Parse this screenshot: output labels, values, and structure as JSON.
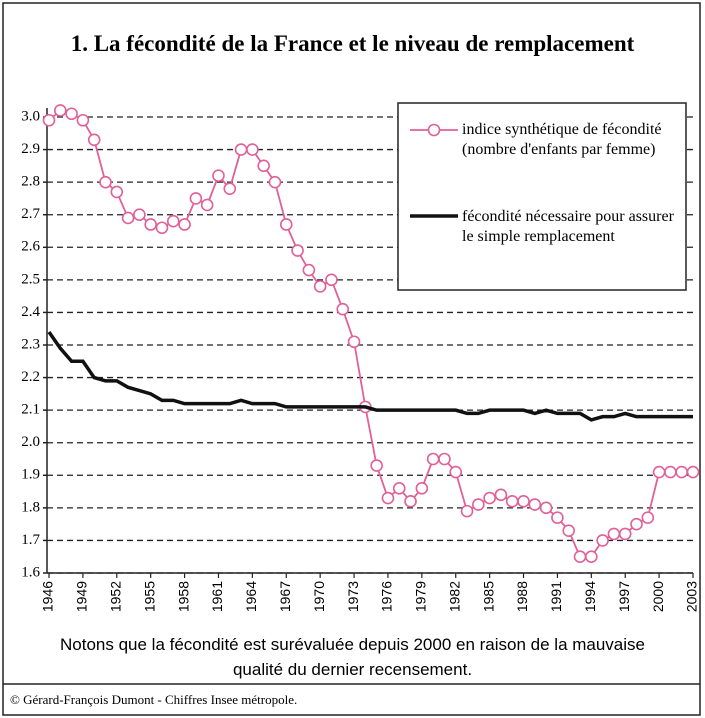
{
  "chart_data": {
    "type": "line",
    "title": "1. La fécondité de la France et le niveau de remplacement",
    "x": [
      1946,
      1947,
      1948,
      1949,
      1950,
      1951,
      1952,
      1953,
      1954,
      1955,
      1956,
      1957,
      1958,
      1959,
      1960,
      1961,
      1962,
      1963,
      1964,
      1965,
      1966,
      1967,
      1968,
      1969,
      1970,
      1971,
      1972,
      1973,
      1974,
      1975,
      1976,
      1977,
      1978,
      1979,
      1980,
      1981,
      1982,
      1983,
      1984,
      1985,
      1986,
      1987,
      1988,
      1989,
      1990,
      1991,
      1992,
      1993,
      1994,
      1995,
      1996,
      1997,
      1998,
      1999,
      2000,
      2001,
      2002,
      2003
    ],
    "series": [
      {
        "name": "indice synthétique de fécondité (nombre d'enfants par femme)",
        "color": "#e0609a",
        "marker": "circle",
        "values": [
          2.99,
          3.02,
          3.01,
          2.99,
          2.93,
          2.8,
          2.77,
          2.69,
          2.7,
          2.67,
          2.66,
          2.68,
          2.67,
          2.75,
          2.73,
          2.82,
          2.78,
          2.9,
          2.9,
          2.85,
          2.8,
          2.67,
          2.59,
          2.53,
          2.48,
          2.5,
          2.41,
          2.31,
          2.11,
          1.93,
          1.83,
          1.86,
          1.82,
          1.86,
          1.95,
          1.95,
          1.91,
          1.79,
          1.81,
          1.83,
          1.84,
          1.82,
          1.82,
          1.81,
          1.8,
          1.77,
          1.73,
          1.65,
          1.65,
          1.7,
          1.72,
          1.72,
          1.75,
          1.77,
          1.91,
          1.91,
          1.91,
          1.91
        ]
      },
      {
        "name": "fécondité nécessaire pour assurer le simple remplacement",
        "color": "#111111",
        "values": [
          2.34,
          2.29,
          2.25,
          2.25,
          2.2,
          2.19,
          2.19,
          2.17,
          2.16,
          2.15,
          2.13,
          2.13,
          2.12,
          2.12,
          2.12,
          2.12,
          2.12,
          2.13,
          2.12,
          2.12,
          2.12,
          2.11,
          2.11,
          2.11,
          2.11,
          2.11,
          2.11,
          2.11,
          2.11,
          2.1,
          2.1,
          2.1,
          2.1,
          2.1,
          2.1,
          2.1,
          2.1,
          2.09,
          2.09,
          2.1,
          2.1,
          2.1,
          2.1,
          2.09,
          2.1,
          2.09,
          2.09,
          2.09,
          2.07,
          2.08,
          2.08,
          2.09,
          2.08,
          2.08,
          2.08,
          2.08,
          2.08,
          2.08
        ]
      }
    ],
    "xlim": [
      1946,
      2003
    ],
    "xticks": [
      1946,
      1949,
      1952,
      1955,
      1958,
      1961,
      1964,
      1967,
      1970,
      1973,
      1976,
      1979,
      1982,
      1985,
      1988,
      1991,
      1994,
      1997,
      2000,
      2003
    ],
    "ylim": [
      1.6,
      3.0
    ],
    "yticks": [
      1.6,
      1.7,
      1.8,
      1.9,
      {
        "value": 2.0,
        "label": "2.0"
      },
      2.1,
      2.2,
      2.3,
      2.4,
      2.5,
      2.6,
      2.7,
      2.8,
      2.9,
      {
        "value": 3.0,
        "label": "3.0"
      }
    ],
    "grid": true,
    "legend": "upper right",
    "note": "Notons que la fécondité est surévaluée depuis 2000 en raison de la mauvaise qualité du dernier recensement.",
    "source": "© Gérard-François Dumont - Chiffres Insee métropole."
  }
}
